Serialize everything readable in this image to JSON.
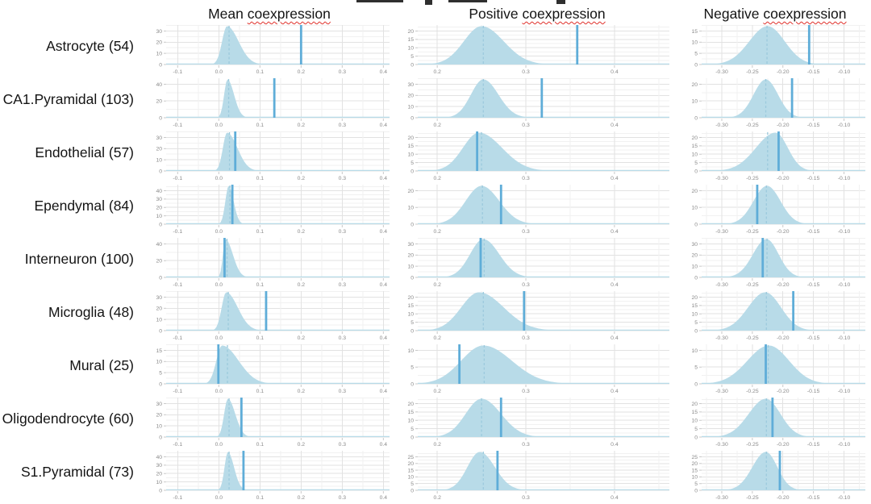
{
  "chart_data": {
    "type": "area",
    "variant": "faceted null-distribution density plots with observed-value line",
    "title": "",
    "grid": "major and minor gridlines on, light gray",
    "legend_position": "none",
    "colors": {
      "density_fill": "#b8dbe8",
      "observed_line": "#5fadd8",
      "null_line_dashed": "#9ccadd",
      "grid_major": "#e2e2e2",
      "grid_minor": "#f1f1f1",
      "axis_text": "#8a8a8a",
      "tick_mark": "#c9c9c9",
      "header_text": "#141414",
      "spellcheck_underline": "#e0302a"
    },
    "columns": [
      {
        "key": "mean",
        "title_prefix": "Mean ",
        "title_word": "coexpression",
        "xlim": [
          -0.128,
          0.415
        ],
        "xticks": [
          -0.1,
          0.0,
          0.1,
          0.2,
          0.3,
          0.4
        ],
        "xtick_labels": [
          "-0.1",
          "0.0",
          "0.1",
          "0.2",
          "0.3",
          "0.4"
        ],
        "minor_step": 0.05
      },
      {
        "key": "pos",
        "title_prefix": "Positive ",
        "title_word": "coexpression",
        "xlim": [
          0.178,
          0.462
        ],
        "xticks": [
          0.2,
          0.3,
          0.4
        ],
        "xtick_labels": [
          "0.2",
          "0.3",
          "0.4"
        ],
        "minor_step": 0.05
      },
      {
        "key": "neg",
        "title_prefix": "Negative ",
        "title_word": "coexpression",
        "xlim": [
          -0.333,
          -0.065
        ],
        "xticks": [
          -0.3,
          -0.25,
          -0.2,
          -0.15,
          -0.1
        ],
        "xtick_labels": [
          "-0.30",
          "-0.25",
          "-0.20",
          "-0.15",
          "-0.10"
        ],
        "minor_step": 0.025
      }
    ],
    "rows": [
      {
        "label": "Astrocyte (54)",
        "panels": {
          "mean": {
            "yticks": [
              0,
              10,
              20,
              30
            ],
            "mode": 0.02,
            "spread_left": 0.012,
            "spread_right": 0.028,
            "observed": 0.2,
            "dashed": 0.025
          },
          "pos": {
            "yticks": [
              0,
              5,
              10,
              15,
              20
            ],
            "mode": 0.25,
            "spread_left": 0.02,
            "spread_right": 0.025,
            "observed": 0.358,
            "dashed": 0.252
          },
          "neg": {
            "yticks": [
              0,
              5,
              10,
              15
            ],
            "mode": -0.225,
            "spread_left": 0.03,
            "spread_right": 0.028,
            "observed": -0.157,
            "dashed": -0.226
          }
        }
      },
      {
        "label": "CA1.Pyramidal (103)",
        "panels": {
          "mean": {
            "yticks": [
              0,
              20,
              40
            ],
            "mode": 0.021,
            "spread_left": 0.008,
            "spread_right": 0.016,
            "observed": 0.135,
            "dashed": 0.024
          },
          "pos": {
            "yticks": [
              0,
              10,
              20,
              30
            ],
            "mode": 0.252,
            "spread_left": 0.014,
            "spread_right": 0.017,
            "observed": 0.318,
            "dashed": 0.252
          },
          "neg": {
            "yticks": [
              0,
              10,
              20
            ],
            "mode": -0.228,
            "spread_left": 0.02,
            "spread_right": 0.02,
            "observed": -0.185,
            "dashed": -0.228
          }
        }
      },
      {
        "label": "Endothelial (57)",
        "panels": {
          "mean": {
            "yticks": [
              0,
              10,
              20,
              30
            ],
            "mode": 0.02,
            "spread_left": 0.01,
            "spread_right": 0.025,
            "observed": 0.04,
            "dashed": 0.026
          },
          "pos": {
            "yticks": [
              0,
              5,
              10,
              15,
              20
            ],
            "mode": 0.247,
            "spread_left": 0.018,
            "spread_right": 0.026,
            "observed": 0.245,
            "dashed": 0.25
          },
          "neg": {
            "yticks": [
              0,
              5,
              10,
              15,
              20
            ],
            "mode": -0.212,
            "spread_left": 0.032,
            "spread_right": 0.02,
            "observed": -0.207,
            "dashed": -0.225
          }
        }
      },
      {
        "label": "Ependymal (84)",
        "panels": {
          "mean": {
            "yticks": [
              0,
              10,
              20,
              30,
              40
            ],
            "mode": 0.024,
            "spread_left": 0.008,
            "spread_right": 0.012,
            "observed": 0.033,
            "dashed": 0.027
          },
          "pos": {
            "yticks": [
              0,
              10,
              20
            ],
            "mode": 0.25,
            "spread_left": 0.018,
            "spread_right": 0.02,
            "observed": 0.272,
            "dashed": 0.251
          },
          "neg": {
            "yticks": [
              0,
              10,
              20
            ],
            "mode": -0.226,
            "spread_left": 0.022,
            "spread_right": 0.022,
            "observed": -0.242,
            "dashed": -0.227
          }
        }
      },
      {
        "label": "Interneuron (100)",
        "panels": {
          "mean": {
            "yticks": [
              0,
              20,
              40
            ],
            "mode": 0.016,
            "spread_left": 0.006,
            "spread_right": 0.018,
            "observed": 0.014,
            "dashed": 0.02
          },
          "pos": {
            "yticks": [
              0,
              10,
              20,
              30
            ],
            "mode": 0.252,
            "spread_left": 0.015,
            "spread_right": 0.018,
            "observed": 0.249,
            "dashed": 0.253
          },
          "neg": {
            "yticks": [
              0,
              10,
              20,
              30
            ],
            "mode": -0.227,
            "spread_left": 0.022,
            "spread_right": 0.02,
            "observed": -0.233,
            "dashed": -0.226
          }
        }
      },
      {
        "label": "Microglia (48)",
        "panels": {
          "mean": {
            "yticks": [
              0,
              10,
              20,
              30
            ],
            "mode": 0.018,
            "spread_left": 0.011,
            "spread_right": 0.028,
            "observed": 0.115,
            "dashed": 0.023
          },
          "pos": {
            "yticks": [
              0,
              5,
              10,
              15,
              20
            ],
            "mode": 0.247,
            "spread_left": 0.02,
            "spread_right": 0.028,
            "observed": 0.298,
            "dashed": 0.252
          },
          "neg": {
            "yticks": [
              0,
              5,
              10,
              15,
              20
            ],
            "mode": -0.229,
            "spread_left": 0.028,
            "spread_right": 0.026,
            "observed": -0.183,
            "dashed": -0.227
          }
        }
      },
      {
        "label": "Mural (25)",
        "panels": {
          "mean": {
            "yticks": [
              0,
              5,
              10,
              15
            ],
            "mode": 0.008,
            "spread_left": 0.014,
            "spread_right": 0.04,
            "observed": -0.001,
            "dashed": 0.021
          },
          "pos": {
            "yticks": [
              0,
              5,
              10
            ],
            "mode": 0.252,
            "spread_left": 0.025,
            "spread_right": 0.032,
            "observed": 0.225,
            "dashed": 0.253
          },
          "neg": {
            "yticks": [
              0,
              5,
              10
            ],
            "mode": -0.223,
            "spread_left": 0.035,
            "spread_right": 0.033,
            "observed": -0.228,
            "dashed": -0.224
          }
        }
      },
      {
        "label": "Oligodendrocyte (60)",
        "panels": {
          "mean": {
            "yticks": [
              0,
              10,
              20,
              30
            ],
            "mode": 0.022,
            "spread_left": 0.009,
            "spread_right": 0.018,
            "observed": 0.055,
            "dashed": 0.025
          },
          "pos": {
            "yticks": [
              0,
              5,
              10,
              15,
              20
            ],
            "mode": 0.25,
            "spread_left": 0.018,
            "spread_right": 0.022,
            "observed": 0.272,
            "dashed": 0.25
          },
          "neg": {
            "yticks": [
              0,
              5,
              10,
              15,
              20
            ],
            "mode": -0.228,
            "spread_left": 0.028,
            "spread_right": 0.024,
            "observed": -0.217,
            "dashed": -0.227
          }
        }
      },
      {
        "label": "S1.Pyramidal (73)",
        "panels": {
          "mean": {
            "yticks": [
              0,
              10,
              20,
              30,
              40
            ],
            "mode": 0.022,
            "spread_left": 0.008,
            "spread_right": 0.015,
            "observed": 0.06,
            "dashed": 0.025
          },
          "pos": {
            "yticks": [
              0,
              5,
              10,
              15,
              20,
              25
            ],
            "mode": 0.248,
            "spread_left": 0.014,
            "spread_right": 0.017,
            "observed": 0.268,
            "dashed": 0.252
          },
          "neg": {
            "yticks": [
              0,
              5,
              10,
              15,
              20,
              25
            ],
            "mode": -0.228,
            "spread_left": 0.022,
            "spread_right": 0.019,
            "observed": -0.205,
            "dashed": -0.227
          }
        }
      }
    ]
  }
}
